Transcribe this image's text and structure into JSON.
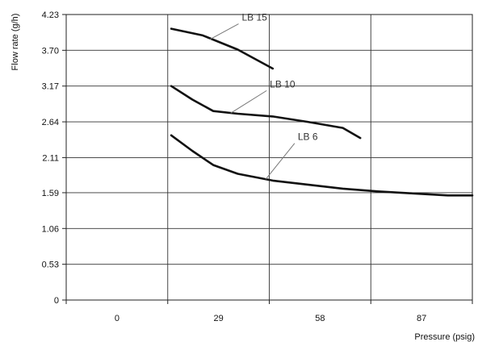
{
  "chart_data": {
    "type": "line",
    "title": "",
    "xlabel": "Pressure (psig)",
    "ylabel": "Flow rate (g/h)",
    "x_ticks": [
      "0",
      "29",
      "58",
      "87"
    ],
    "y_ticks": [
      "0",
      "0.53",
      "1.06",
      "1.59",
      "2.11",
      "2.64",
      "3.17",
      "3.70",
      "4.23"
    ],
    "xlim": [
      -29,
      87
    ],
    "ylim": [
      0,
      4.23
    ],
    "grid": true,
    "series": [
      {
        "name": "LB 15",
        "x": [
          1,
          10,
          20,
          30
        ],
        "y": [
          4.02,
          3.92,
          3.71,
          3.43
        ]
      },
      {
        "name": "LB 10",
        "x": [
          1,
          7,
          13,
          20,
          30,
          40,
          50,
          55
        ],
        "y": [
          3.17,
          2.97,
          2.8,
          2.76,
          2.72,
          2.64,
          2.55,
          2.4
        ]
      },
      {
        "name": "LB 6",
        "x": [
          1,
          7,
          13,
          20,
          30,
          40,
          50,
          60,
          70,
          80,
          87
        ],
        "y": [
          2.44,
          2.21,
          2.0,
          1.87,
          1.77,
          1.71,
          1.65,
          1.61,
          1.58,
          1.55,
          1.55
        ]
      }
    ],
    "line_color": "#111111"
  }
}
